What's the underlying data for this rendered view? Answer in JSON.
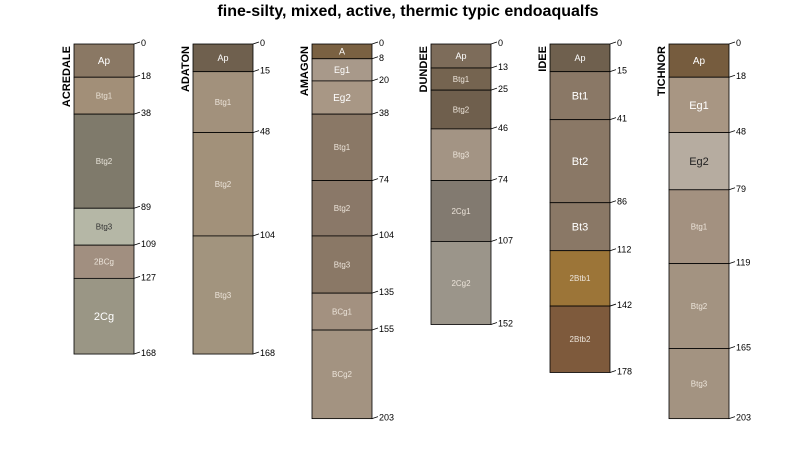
{
  "title": "fine-silty, mixed, active, thermic typic endoaqualfs",
  "profiles": [
    {
      "name": "ACREDALE",
      "horizons": [
        {
          "name": "Ap",
          "top": 0,
          "bottom": 18,
          "color": "#8a7864",
          "text_color": "#ffffff"
        },
        {
          "name": "Btg1",
          "top": 18,
          "bottom": 38,
          "color": "#a28f78",
          "text_color": "#e8e0d4"
        },
        {
          "name": "Btg2",
          "top": 38,
          "bottom": 89,
          "color": "#7f7a6b",
          "text_color": "#e8e4da"
        },
        {
          "name": "Btg3",
          "top": 89,
          "bottom": 109,
          "color": "#b5b7a6",
          "text_color": "#333333"
        },
        {
          "name": "2BCg",
          "top": 109,
          "bottom": 127,
          "color": "#a18f80",
          "text_color": "#ece4da"
        },
        {
          "name": "2Cg",
          "top": 127,
          "bottom": 168,
          "color": "#9a9685",
          "text_color": "#ffffff"
        }
      ],
      "depth_labels": [
        "0",
        "18",
        "38",
        "89",
        "109",
        "127",
        "168"
      ]
    },
    {
      "name": "ADATON",
      "horizons": [
        {
          "name": "Ap",
          "top": 0,
          "bottom": 15,
          "color": "#6f604e",
          "text_color": "#ffffff"
        },
        {
          "name": "Btg1",
          "top": 15,
          "bottom": 48,
          "color": "#a2917c",
          "text_color": "#ece4da"
        },
        {
          "name": "Btg2",
          "top": 48,
          "bottom": 104,
          "color": "#a2917a",
          "text_color": "#ece4da"
        },
        {
          "name": "Btg3",
          "top": 104,
          "bottom": 168,
          "color": "#a2947e",
          "text_color": "#ece4da"
        }
      ],
      "depth_labels": [
        "0",
        "15",
        "48",
        "104",
        "168"
      ]
    },
    {
      "name": "AMAGON",
      "horizons": [
        {
          "name": "A",
          "top": 0,
          "bottom": 8,
          "color": "#7a6142",
          "text_color": "#ffffff"
        },
        {
          "name": "Eg1",
          "top": 8,
          "bottom": 20,
          "color": "#a8998a",
          "text_color": "#ffffff"
        },
        {
          "name": "Eg2",
          "top": 20,
          "bottom": 38,
          "color": "#a89785",
          "text_color": "#ffffff"
        },
        {
          "name": "Btg1",
          "top": 38,
          "bottom": 74,
          "color": "#8a7866",
          "text_color": "#ece4da"
        },
        {
          "name": "Btg2",
          "top": 74,
          "bottom": 104,
          "color": "#8a7868",
          "text_color": "#ece4da"
        },
        {
          "name": "Btg3",
          "top": 104,
          "bottom": 135,
          "color": "#8a7866",
          "text_color": "#ece4da"
        },
        {
          "name": "BCg1",
          "top": 135,
          "bottom": 155,
          "color": "#a39180",
          "text_color": "#ece4da"
        },
        {
          "name": "BCg2",
          "top": 155,
          "bottom": 203,
          "color": "#a39381",
          "text_color": "#ece4da"
        }
      ],
      "depth_labels": [
        "0",
        "8",
        "20",
        "38",
        "74",
        "104",
        "135",
        "155",
        "203"
      ]
    },
    {
      "name": "DUNDEE",
      "horizons": [
        {
          "name": "Ap",
          "top": 0,
          "bottom": 13,
          "color": "#7d6c5a",
          "text_color": "#ffffff"
        },
        {
          "name": "Btg1",
          "top": 13,
          "bottom": 25,
          "color": "#756450",
          "text_color": "#ece4da"
        },
        {
          "name": "Btg2",
          "top": 25,
          "bottom": 46,
          "color": "#6f5f4d",
          "text_color": "#ece4da"
        },
        {
          "name": "Btg3",
          "top": 46,
          "bottom": 74,
          "color": "#a39484",
          "text_color": "#ece4da"
        },
        {
          "name": "2Cg1",
          "top": 74,
          "bottom": 107,
          "color": "#827a70",
          "text_color": "#ece4da"
        },
        {
          "name": "2Cg2",
          "top": 107,
          "bottom": 152,
          "color": "#9b958a",
          "text_color": "#ece4da"
        }
      ],
      "depth_labels": [
        "0",
        "13",
        "25",
        "46",
        "74",
        "107",
        "152"
      ]
    },
    {
      "name": "IDEE",
      "horizons": [
        {
          "name": "Ap",
          "top": 0,
          "bottom": 15,
          "color": "#6f604e",
          "text_color": "#ffffff"
        },
        {
          "name": "Bt1",
          "top": 15,
          "bottom": 41,
          "color": "#8a7866",
          "text_color": "#ffffff"
        },
        {
          "name": "Bt2",
          "top": 41,
          "bottom": 86,
          "color": "#8a7866",
          "text_color": "#ffffff"
        },
        {
          "name": "Bt3",
          "top": 86,
          "bottom": 112,
          "color": "#8a7866",
          "text_color": "#ffffff"
        },
        {
          "name": "2Btb1",
          "top": 112,
          "bottom": 142,
          "color": "#9c7538",
          "text_color": "#ece4da"
        },
        {
          "name": "2Btb2",
          "top": 142,
          "bottom": 178,
          "color": "#7e5a3c",
          "text_color": "#ece4da"
        }
      ],
      "depth_labels": [
        "0",
        "15",
        "41",
        "86",
        "112",
        "142",
        "178"
      ]
    },
    {
      "name": "TICHNOR",
      "horizons": [
        {
          "name": "Ap",
          "top": 0,
          "bottom": 18,
          "color": "#765c3e",
          "text_color": "#ffffff"
        },
        {
          "name": "Eg1",
          "top": 18,
          "bottom": 48,
          "color": "#a89683",
          "text_color": "#ffffff"
        },
        {
          "name": "Eg2",
          "top": 48,
          "bottom": 79,
          "color": "#b6aca0",
          "text_color": "#222222"
        },
        {
          "name": "Btg1",
          "top": 79,
          "bottom": 119,
          "color": "#a39180",
          "text_color": "#ece4da"
        },
        {
          "name": "Btg2",
          "top": 119,
          "bottom": 165,
          "color": "#a39381",
          "text_color": "#ece4da"
        },
        {
          "name": "Btg3",
          "top": 165,
          "bottom": 203,
          "color": "#a39381",
          "text_color": "#ece4da"
        }
      ],
      "depth_labels": [
        "0",
        "18",
        "48",
        "79",
        "119",
        "165",
        "203"
      ]
    }
  ]
}
